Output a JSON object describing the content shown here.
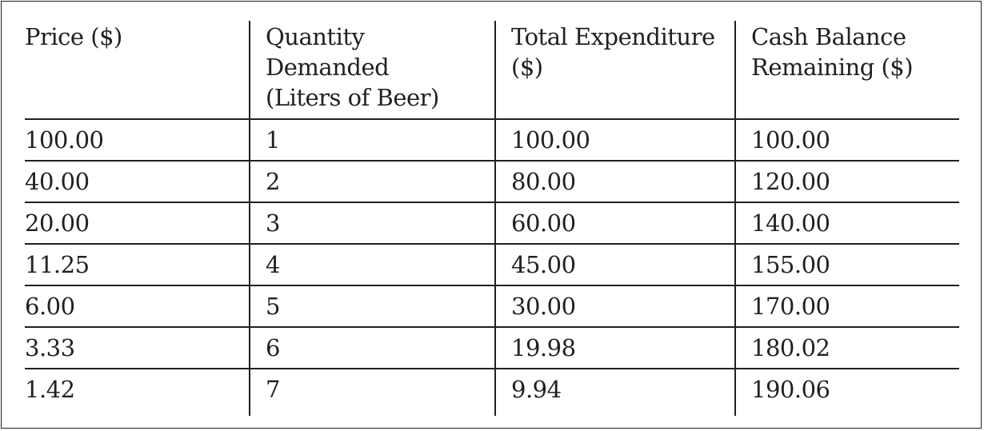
{
  "table": {
    "headers": [
      [
        "Price ($)"
      ],
      [
        "Quantity",
        "Demanded",
        "(Liters of Beer)"
      ],
      [
        "Total Expenditure",
        "($)"
      ],
      [
        "Cash Balance",
        "Remaining ($)"
      ]
    ],
    "rows": [
      [
        "100.00",
        "1",
        "100.00",
        "100.00"
      ],
      [
        "40.00",
        "2",
        "80.00",
        "120.00"
      ],
      [
        "20.00",
        "3",
        "60.00",
        "140.00"
      ],
      [
        "11.25",
        "4",
        "45.00",
        "155.00"
      ],
      [
        "6.00",
        "5",
        "30.00",
        "170.00"
      ],
      [
        "3.33",
        "6",
        "19.98",
        "180.02"
      ],
      [
        "1.42",
        "7",
        "9.94",
        "190.06"
      ]
    ]
  }
}
